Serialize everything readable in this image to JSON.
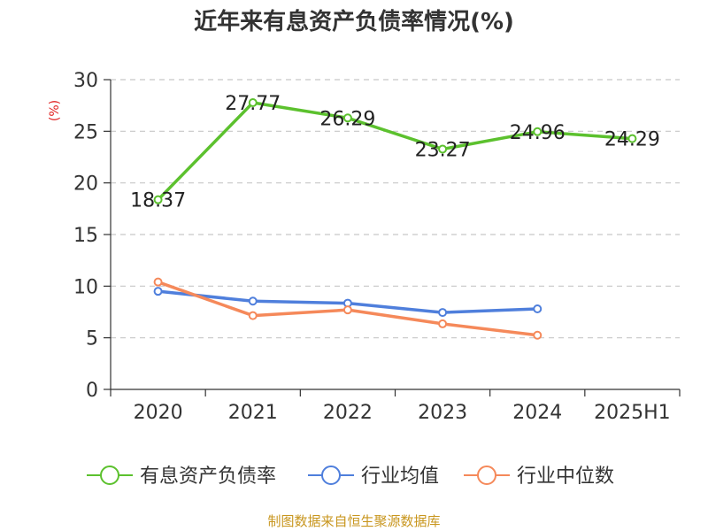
{
  "chart_data": {
    "type": "line",
    "title": "近年来有息资产负债率情况(%)",
    "ylabel": "(%)",
    "xlabel": "",
    "categories": [
      "2020",
      "2021",
      "2022",
      "2023",
      "2024",
      "2025H1"
    ],
    "ylim": [
      0,
      30
    ],
    "yticks": [
      0,
      5,
      10,
      15,
      20,
      25,
      30
    ],
    "grid": true,
    "legend_position": "bottom",
    "series": [
      {
        "name": "有息资产负债率",
        "color": "#5cc12e",
        "values": [
          18.37,
          27.77,
          26.29,
          23.27,
          24.96,
          24.29
        ],
        "labels": [
          "18.37",
          "27.77",
          "26.29",
          "23.27",
          "24.96",
          "24.29"
        ]
      },
      {
        "name": "行业均值",
        "color": "#4f7fdc",
        "values": [
          9.5,
          8.55,
          8.35,
          7.45,
          7.8,
          null
        ]
      },
      {
        "name": "行业中位数",
        "color": "#f5895a",
        "values": [
          10.4,
          7.15,
          7.7,
          6.35,
          5.25,
          null
        ]
      }
    ]
  },
  "source_note": "制图数据来自恒生聚源数据库"
}
